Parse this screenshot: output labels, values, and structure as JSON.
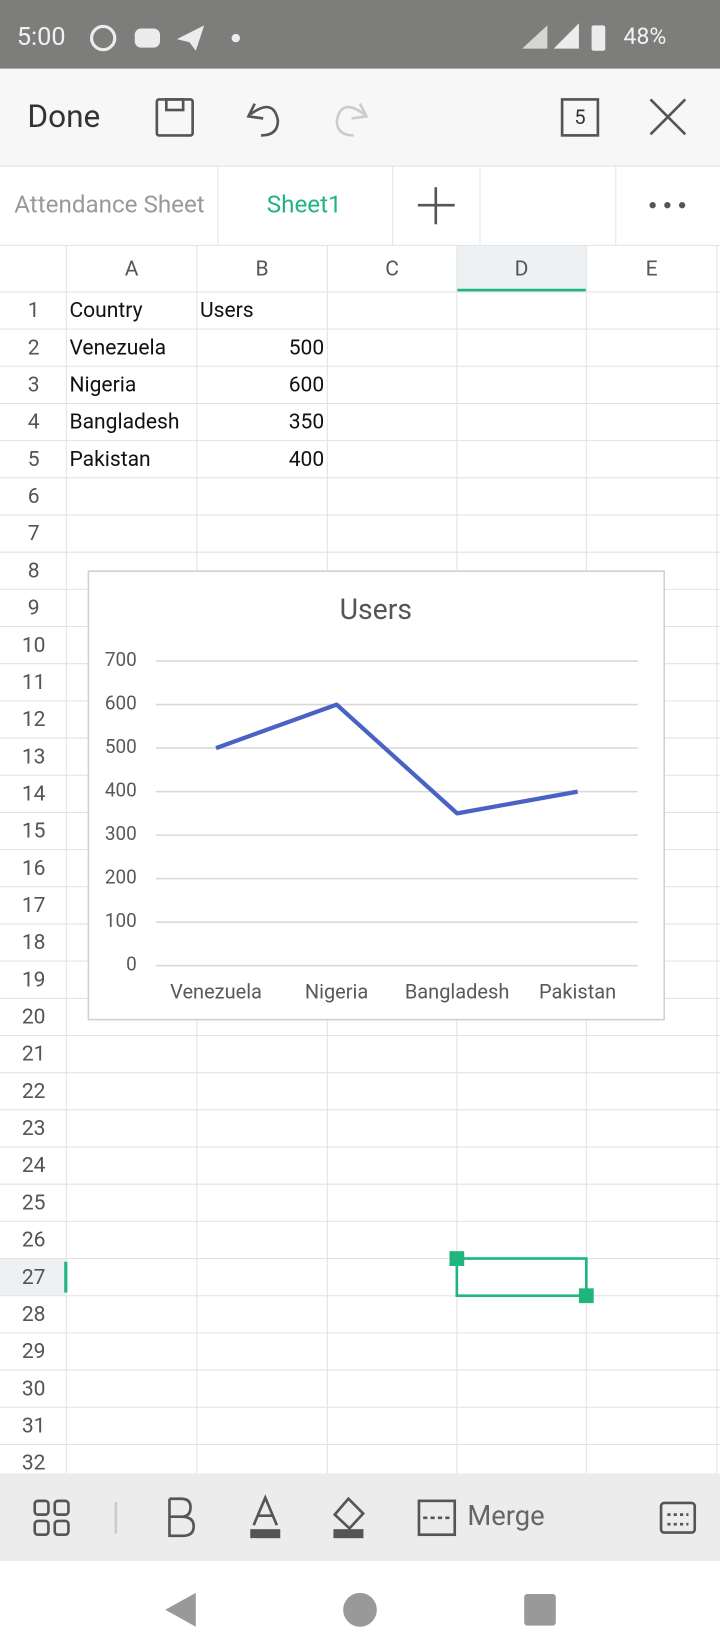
{
  "status_bar": {
    "time": "5:00",
    "battery": "48%"
  },
  "toolbar": {
    "done": "Done",
    "window_count": "5"
  },
  "tabs": [
    "Attendance Sheet",
    "Sheet1"
  ],
  "sheet": {
    "columns": [
      "A",
      "B",
      "C",
      "D",
      "E"
    ],
    "row_numbers": [
      1,
      2,
      3,
      4,
      5,
      6,
      7,
      8,
      9,
      10,
      11,
      12,
      13,
      14,
      15,
      16,
      17,
      18,
      19,
      20,
      21,
      22,
      23,
      24,
      25,
      26,
      27,
      28,
      29,
      30,
      31,
      32
    ],
    "rows": [
      [
        "Country",
        "Users"
      ],
      [
        "Venezuela",
        500
      ],
      [
        "Nigeria",
        600
      ],
      [
        "Bangladesh",
        350
      ],
      [
        "Pakistan",
        400
      ]
    ]
  },
  "chart_data": {
    "type": "line",
    "title": "Users",
    "categories": [
      "Venezuela",
      "Nigeria",
      "Bangladesh",
      "Pakistan"
    ],
    "values": [
      500,
      600,
      350,
      400
    ],
    "color": "#4a62c4",
    "ylim": [
      0,
      700
    ],
    "yticks": [
      0,
      100,
      200,
      300,
      400,
      500,
      600,
      700
    ],
    "grid": true
  },
  "bottom_toolbar": {
    "merge": "Merge"
  }
}
